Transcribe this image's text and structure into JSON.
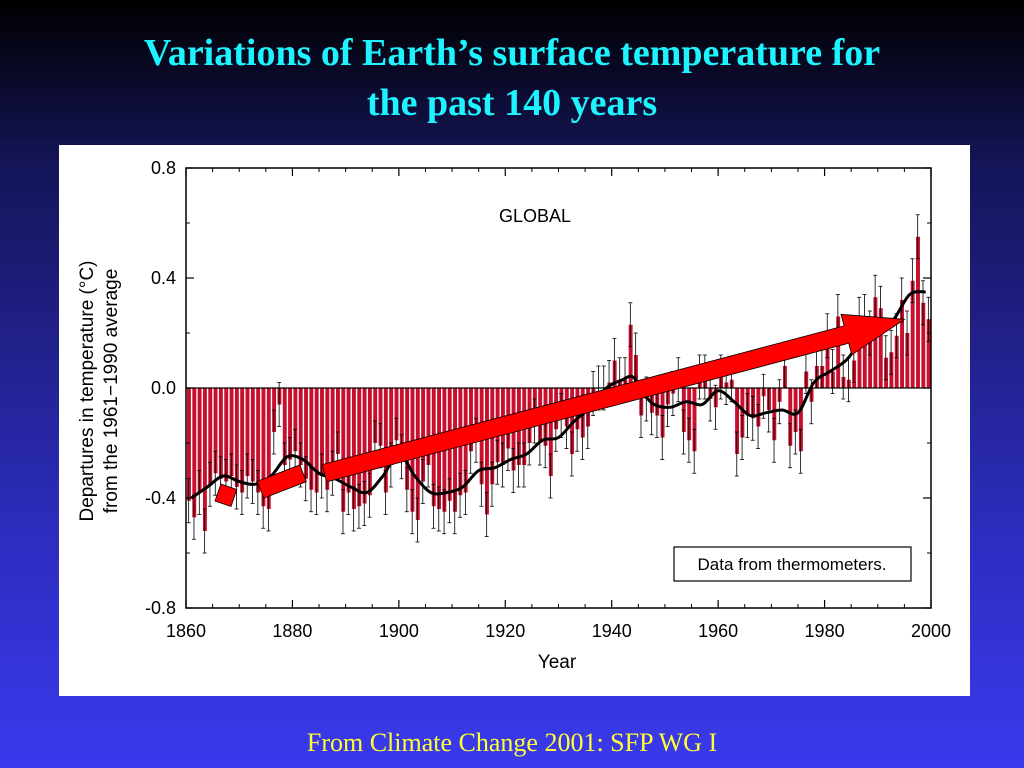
{
  "slide": {
    "title_line1": "Variations of  Earth’s surface temperature for",
    "title_line2": "the past 140 years",
    "footer": "From Climate Change 2001: SFP WG I"
  },
  "colors": {
    "bar": "#c8102e",
    "smooth_line": "#000000",
    "arrow": "#ff0000",
    "title": "#1ef4ff",
    "footer": "#ffff33"
  },
  "chart_data": {
    "type": "bar",
    "title": "GLOBAL",
    "annotation": "Data from thermometers.",
    "xlabel": "Year",
    "ylabel_line1": "Departures in temperature (°C)",
    "ylabel_line2": "from the 1961−1990 average",
    "xlim": [
      1860,
      2000
    ],
    "ylim": [
      -0.8,
      0.8
    ],
    "x_ticks": [
      1860,
      1880,
      1900,
      1920,
      1940,
      1960,
      1980,
      2000
    ],
    "y_ticks": [
      0.8,
      0.4,
      0.0,
      -0.4,
      -0.8
    ],
    "y_tick_labels": [
      "0.8",
      "0.4",
      "0.0",
      "-0.4",
      "-0.8"
    ],
    "grid": false,
    "legend": "none",
    "series": [
      {
        "kind": "bars",
        "x": [
          1861,
          1862,
          1863,
          1864,
          1865,
          1866,
          1867,
          1868,
          1869,
          1870,
          1871,
          1872,
          1873,
          1874,
          1875,
          1876,
          1877,
          1878,
          1879,
          1880,
          1881,
          1882,
          1883,
          1884,
          1885,
          1886,
          1887,
          1888,
          1889,
          1890,
          1891,
          1892,
          1893,
          1894,
          1895,
          1896,
          1897,
          1898,
          1899,
          1900,
          1901,
          1902,
          1903,
          1904,
          1905,
          1906,
          1907,
          1908,
          1909,
          1910,
          1911,
          1912,
          1913,
          1914,
          1915,
          1916,
          1917,
          1918,
          1919,
          1920,
          1921,
          1922,
          1923,
          1924,
          1925,
          1926,
          1927,
          1928,
          1929,
          1930,
          1931,
          1932,
          1933,
          1934,
          1935,
          1936,
          1937,
          1938,
          1939,
          1940,
          1941,
          1942,
          1943,
          1944,
          1945,
          1946,
          1947,
          1948,
          1949,
          1950,
          1951,
          1952,
          1953,
          1954,
          1955,
          1956,
          1957,
          1958,
          1959,
          1960,
          1961,
          1962,
          1963,
          1964,
          1965,
          1966,
          1967,
          1968,
          1969,
          1970,
          1971,
          1972,
          1973,
          1974,
          1975,
          1976,
          1977,
          1978,
          1979,
          1980,
          1981,
          1982,
          1983,
          1984,
          1985,
          1986,
          1987,
          1988,
          1989,
          1990,
          1991,
          1992,
          1993,
          1994,
          1995,
          1996,
          1997,
          1998,
          1999,
          2000
        ],
        "values": [
          -0.41,
          -0.47,
          -0.38,
          -0.52,
          -0.35,
          -0.31,
          -0.33,
          -0.34,
          -0.32,
          -0.36,
          -0.38,
          -0.32,
          -0.34,
          -0.38,
          -0.43,
          -0.44,
          -0.16,
          -0.06,
          -0.28,
          -0.26,
          -0.23,
          -0.28,
          -0.33,
          -0.37,
          -0.38,
          -0.32,
          -0.37,
          -0.31,
          -0.24,
          -0.45,
          -0.38,
          -0.44,
          -0.43,
          -0.42,
          -0.39,
          -0.2,
          -0.21,
          -0.38,
          -0.28,
          -0.19,
          -0.25,
          -0.37,
          -0.45,
          -0.48,
          -0.34,
          -0.28,
          -0.43,
          -0.44,
          -0.45,
          -0.41,
          -0.45,
          -0.39,
          -0.38,
          -0.23,
          -0.19,
          -0.35,
          -0.46,
          -0.35,
          -0.27,
          -0.28,
          -0.22,
          -0.3,
          -0.28,
          -0.28,
          -0.2,
          -0.12,
          -0.2,
          -0.21,
          -0.32,
          -0.15,
          -0.1,
          -0.14,
          -0.24,
          -0.15,
          -0.18,
          -0.14,
          -0.02,
          0.0,
          0.0,
          0.02,
          0.1,
          0.03,
          0.03,
          0.23,
          0.12,
          -0.1,
          -0.04,
          -0.09,
          -0.1,
          -0.18,
          -0.06,
          -0.02,
          0.03,
          -0.16,
          -0.19,
          -0.23,
          0.04,
          0.04,
          -0.04,
          -0.07,
          0.04,
          0.02,
          0.03,
          -0.24,
          -0.18,
          -0.1,
          -0.11,
          -0.14,
          -0.03,
          -0.08,
          -0.19,
          -0.05,
          0.08,
          -0.21,
          -0.16,
          -0.23,
          0.06,
          -0.05,
          0.08,
          0.08,
          0.19,
          0.06,
          0.26,
          0.04,
          0.03,
          0.1,
          0.25,
          0.26,
          0.2,
          0.33,
          0.29,
          0.11,
          0.13,
          0.19,
          0.32,
          0.2,
          0.39,
          0.55,
          0.31,
          0.25
        ],
        "error": 0.08
      },
      {
        "kind": "smoothed-line",
        "x": [
          1861,
          1864,
          1867,
          1870,
          1873,
          1876,
          1879,
          1882,
          1885,
          1888,
          1891,
          1894,
          1897,
          1900,
          1903,
          1906,
          1909,
          1912,
          1915,
          1918,
          1921,
          1924,
          1927,
          1930,
          1933,
          1936,
          1939,
          1942,
          1944,
          1946,
          1948,
          1951,
          1954,
          1957,
          1960,
          1963,
          1966,
          1969,
          1972,
          1975,
          1978,
          1981,
          1984,
          1987,
          1990,
          1993,
          1996,
          1999
        ],
        "values": [
          -0.4,
          -0.36,
          -0.32,
          -0.34,
          -0.35,
          -0.32,
          -0.25,
          -0.26,
          -0.31,
          -0.33,
          -0.36,
          -0.38,
          -0.32,
          -0.24,
          -0.32,
          -0.38,
          -0.38,
          -0.36,
          -0.3,
          -0.29,
          -0.26,
          -0.24,
          -0.19,
          -0.18,
          -0.12,
          -0.07,
          0.0,
          0.03,
          0.04,
          -0.02,
          -0.06,
          -0.07,
          -0.05,
          -0.06,
          -0.01,
          -0.05,
          -0.1,
          -0.09,
          -0.08,
          -0.09,
          0.02,
          0.06,
          0.1,
          0.17,
          0.2,
          0.25,
          0.34,
          0.35
        ]
      },
      {
        "kind": "arrow-overlay",
        "segments": [
          {
            "x": [
              1866,
              1869
            ],
            "y": [
              -0.38,
              -0.4
            ]
          },
          {
            "x": [
              1874,
              1882
            ],
            "y": [
              -0.37,
              -0.31
            ]
          },
          {
            "x": [
              1886,
              1995
            ],
            "y": [
              -0.31,
              0.25
            ]
          }
        ]
      }
    ]
  }
}
